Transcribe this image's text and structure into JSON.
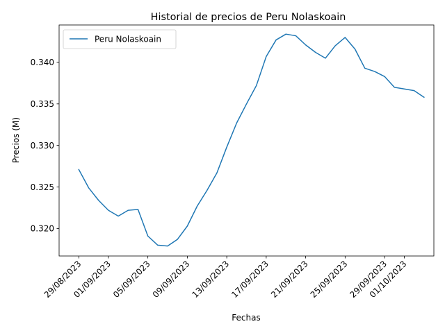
{
  "chart_data": {
    "type": "line",
    "title": "Historial de precios de Peru Nolaskoain",
    "xlabel": "Fechas",
    "ylabel": "Precios (M)",
    "ylim": [
      0.3167,
      0.3445
    ],
    "xlim": [
      "2023-08-27",
      "2023-10-04"
    ],
    "yticks": [
      0.32,
      0.325,
      0.33,
      0.335,
      0.34
    ],
    "ytick_labels": [
      "0.320",
      "0.325",
      "0.330",
      "0.335",
      "0.340"
    ],
    "xticks": [
      "2023-08-29",
      "2023-09-01",
      "2023-09-05",
      "2023-09-09",
      "2023-09-13",
      "2023-09-17",
      "2023-09-21",
      "2023-09-25",
      "2023-09-29",
      "2023-10-01"
    ],
    "xtick_labels": [
      "29/08/2023",
      "01/09/2023",
      "05/09/2023",
      "09/09/2023",
      "13/09/2023",
      "17/09/2023",
      "21/09/2023",
      "25/09/2023",
      "29/09/2023",
      "01/10/2023"
    ],
    "grid": false,
    "legend": "top-left",
    "series": [
      {
        "name": "Peru Nolaskoain",
        "color": "#1f77b4",
        "x": [
          "2023-08-29",
          "2023-08-30",
          "2023-08-31",
          "2023-09-01",
          "2023-09-02",
          "2023-09-03",
          "2023-09-04",
          "2023-09-05",
          "2023-09-06",
          "2023-09-07",
          "2023-09-08",
          "2023-09-09",
          "2023-09-10",
          "2023-09-11",
          "2023-09-12",
          "2023-09-13",
          "2023-09-14",
          "2023-09-15",
          "2023-09-16",
          "2023-09-17",
          "2023-09-18",
          "2023-09-19",
          "2023-09-20",
          "2023-09-21",
          "2023-09-22",
          "2023-09-23",
          "2023-09-24",
          "2023-09-25",
          "2023-09-26",
          "2023-09-27",
          "2023-09-28",
          "2023-09-29",
          "2023-09-30",
          "2023-10-01",
          "2023-10-02",
          "2023-10-03"
        ],
        "values": [
          0.3271,
          0.3249,
          0.3234,
          0.3222,
          0.3215,
          0.3222,
          0.3223,
          0.3191,
          0.318,
          0.3179,
          0.3187,
          0.3203,
          0.3227,
          0.3246,
          0.3267,
          0.3298,
          0.3327,
          0.335,
          0.3372,
          0.3407,
          0.3427,
          0.3434,
          0.3432,
          0.3421,
          0.3412,
          0.3405,
          0.342,
          0.343,
          0.3416,
          0.3393,
          0.3389,
          0.3383,
          0.337,
          0.3368,
          0.3366,
          0.3358
        ]
      }
    ]
  }
}
